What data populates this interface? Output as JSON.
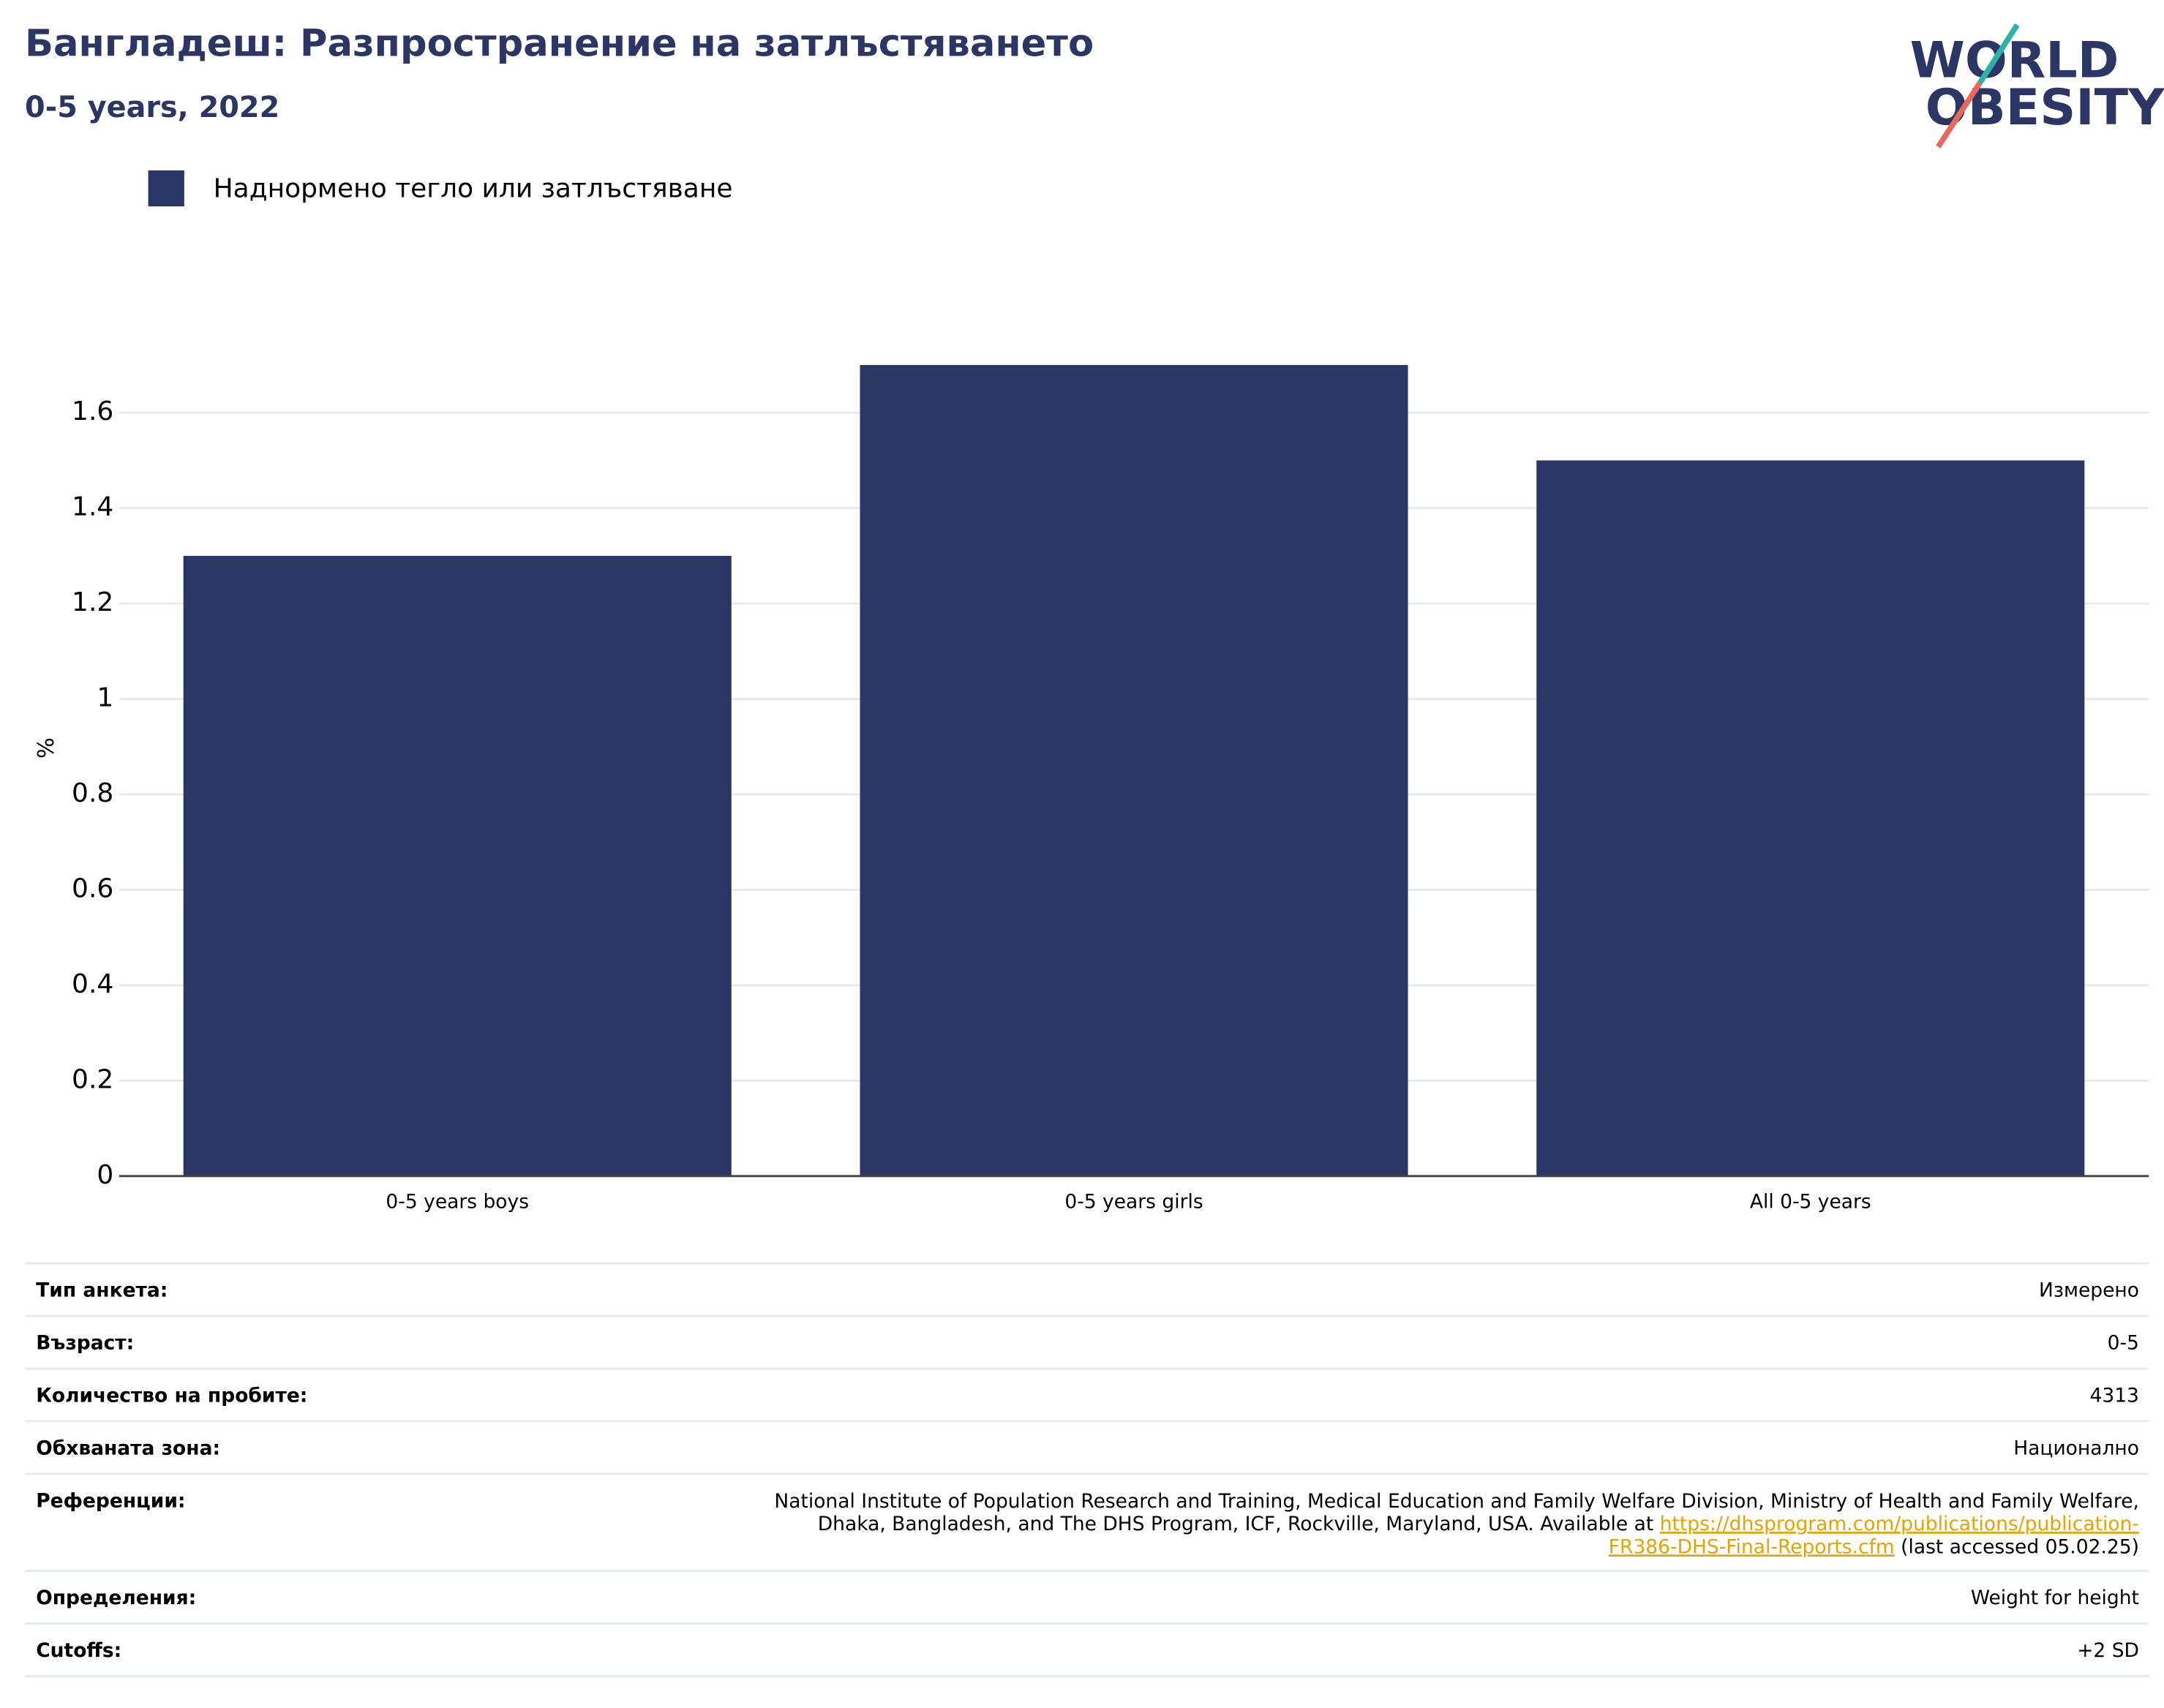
{
  "chart_data": {
    "type": "bar",
    "title": "Бангладеш: Разпространение на затлъстяването",
    "subtitle": "0-5 years, 2022",
    "y_label": "%",
    "categories": [
      "0-5 years boys",
      "0-5 years girls",
      "All 0-5 years"
    ],
    "series": [
      {
        "name": "Наднормено тегло или затлъстяване",
        "color": "#2b3664",
        "values": [
          1.3,
          1.7,
          1.5
        ]
      }
    ],
    "ylim": [
      0,
      1.79
    ],
    "yticks": [
      0,
      0.2,
      0.4,
      0.6,
      0.8,
      1,
      1.2,
      1.4,
      1.6
    ],
    "grid": true,
    "legend": "top-left"
  },
  "logo": {
    "line1": "WORLD",
    "line2": "OBESITY"
  },
  "table": {
    "rows": [
      {
        "label": "Тип анкета:",
        "value": "Измерено"
      },
      {
        "label": "Възраст:",
        "value": "0-5"
      },
      {
        "label": "Количество на пробите:",
        "value": "4313"
      },
      {
        "label": "Обхваната зона:",
        "value": "Национално"
      },
      {
        "label": "Референции:",
        "value": [
          [
            {
              "text": "National Institute of Population Research and Training, Medical Education and Family Welfare Division, Ministry of Health and Family Welfare,"
            }
          ],
          [
            {
              "text": "Dhaka, Bangladesh, and The DHS Program, ICF, Rockville, Maryland, USA. Available at "
            },
            {
              "text": "https://dhsprogram.com/publications/publication-",
              "link": true
            }
          ],
          [
            {
              "text": "FR386-DHS-Final-Reports.cfm",
              "link": true
            },
            {
              "text": " (last accessed 05.02.25)"
            }
          ]
        ]
      },
      {
        "label": "Определения:",
        "value": "Weight for height"
      },
      {
        "label": "Cutoffs:",
        "value": "+2 SD"
      }
    ]
  }
}
